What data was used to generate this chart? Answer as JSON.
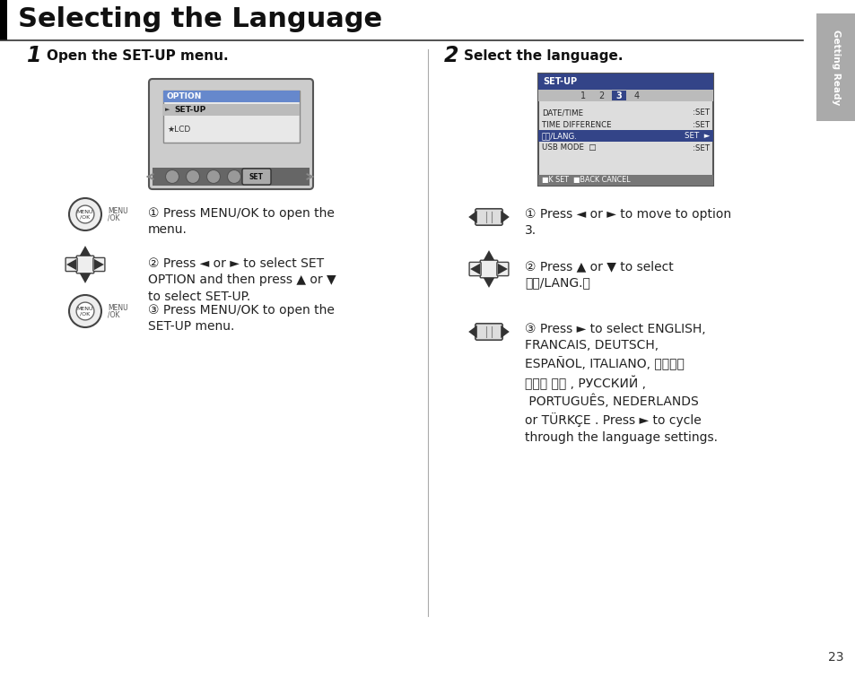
{
  "title": "Selecting the Language",
  "page_number": "23",
  "sidebar_text": "Getting Ready",
  "sidebar_color": "#aaaaaa",
  "background_color": "#ffffff",
  "title_font_size": 22,
  "section1_number": "1",
  "section1_title": "Open the SET-UP menu.",
  "section2_number": "2",
  "section2_title": "Select the language.",
  "step1_texts": [
    "Press MENU/OK to open the\nmenu.",
    "Press ◄ or ► to select SET\nOPTION and then press ▲ or ▼\nto select SET-UP.",
    "Press MENU/OK to open the\nSET-UP menu."
  ],
  "step2_texts": [
    "Press ◄ or ► to move to option\n3.",
    "Press ▲ or ▼ to select\n言語/LANG.。",
    "Press ► to select ENGLISH,\nFRANCAIS, DEUTSCH,\nESPAÑOL, ITALIANO, 中文简，\n繁體， 한글 , РУССКИЙ ,\n PORTUGUÊS, NEDERLANDS\nor TÜRKÇE . Press ► to cycle\nthrough the language settings."
  ]
}
